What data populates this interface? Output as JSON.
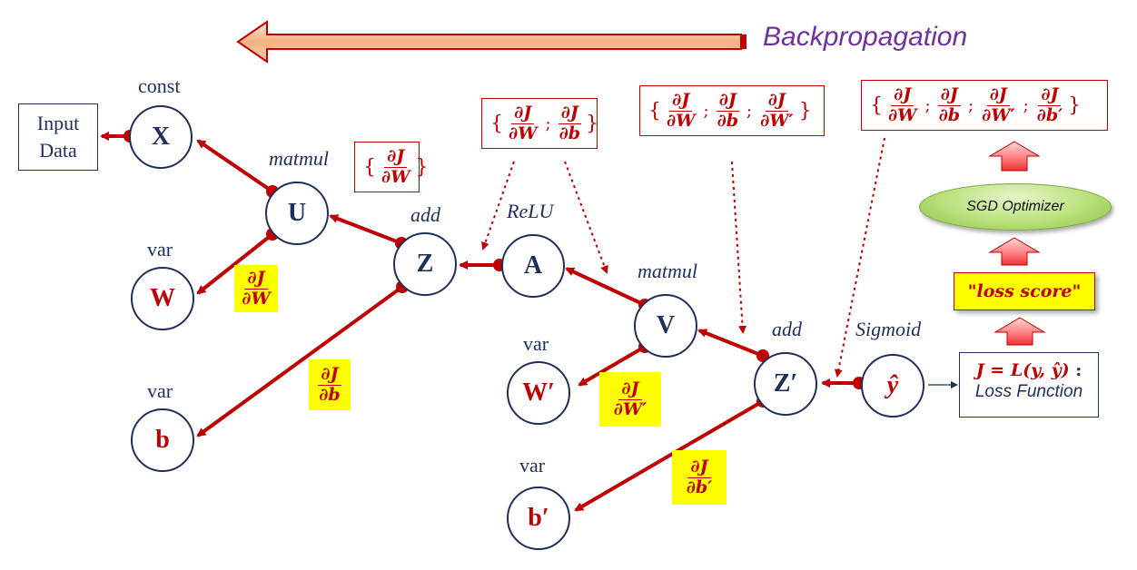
{
  "title": "Backpropagation",
  "input_data": {
    "line1": "Input",
    "line2": "Data"
  },
  "nodes": {
    "x": {
      "symbol": "X",
      "label": "const"
    },
    "u": {
      "symbol": "U",
      "label": "matmul"
    },
    "w": {
      "symbol": "W",
      "label": "var"
    },
    "z": {
      "symbol": "Z",
      "label": "add"
    },
    "b": {
      "symbol": "b",
      "label": "var"
    },
    "a": {
      "symbol": "A",
      "label": "ReLU"
    },
    "v": {
      "symbol": "V",
      "label": "matmul"
    },
    "w2": {
      "symbol": "W′",
      "label": "var"
    },
    "z2": {
      "symbol": "Z′",
      "label": "add"
    },
    "b2": {
      "symbol": "b′",
      "label": "var"
    },
    "yhat": {
      "symbol": "ŷ",
      "label": "Sigmoid"
    }
  },
  "grad_sets": {
    "u": {
      "open": "{",
      "close": "}",
      "terms": [
        {
          "num": "∂J",
          "den": "∂W"
        }
      ]
    },
    "a": {
      "open": "{",
      "close": "}",
      "sep": ";",
      "terms": [
        {
          "num": "∂J",
          "den": "∂W"
        },
        {
          "num": "∂J",
          "den": "∂b"
        }
      ]
    },
    "z2": {
      "open": "{",
      "close": "}",
      "sep": ";",
      "terms": [
        {
          "num": "∂J",
          "den": "∂W"
        },
        {
          "num": "∂J",
          "den": "∂b"
        },
        {
          "num": "∂J",
          "den": "∂W′"
        }
      ]
    },
    "top": {
      "open": "{",
      "close": "}",
      "sep": ";",
      "terms": [
        {
          "num": "∂J",
          "den": "∂W"
        },
        {
          "num": "∂J",
          "den": "∂b"
        },
        {
          "num": "∂J",
          "den": "∂W′"
        },
        {
          "num": "∂J",
          "den": "∂b′"
        }
      ]
    }
  },
  "edge_grads": {
    "w": {
      "num": "∂J",
      "den": "∂W"
    },
    "b": {
      "num": "∂J",
      "den": "∂b"
    },
    "w2": {
      "num": "∂J",
      "den": "∂W′"
    },
    "b2": {
      "num": "∂J",
      "den": "∂b′"
    }
  },
  "optimizer": {
    "label": "SGD Optimizer"
  },
  "loss_score": {
    "label": "\"loss score\""
  },
  "loss_function": {
    "eq_left": "J = L(y, ŷ)",
    "eq_colon": ":",
    "name": "Loss Function"
  },
  "colors": {
    "edge": "#c00000",
    "node_border": "#1f2f5c",
    "highlight": "#ffff00",
    "title": "#7030a0",
    "arrow_fill": "#f4b183",
    "arrow_stroke": "#c00000"
  }
}
